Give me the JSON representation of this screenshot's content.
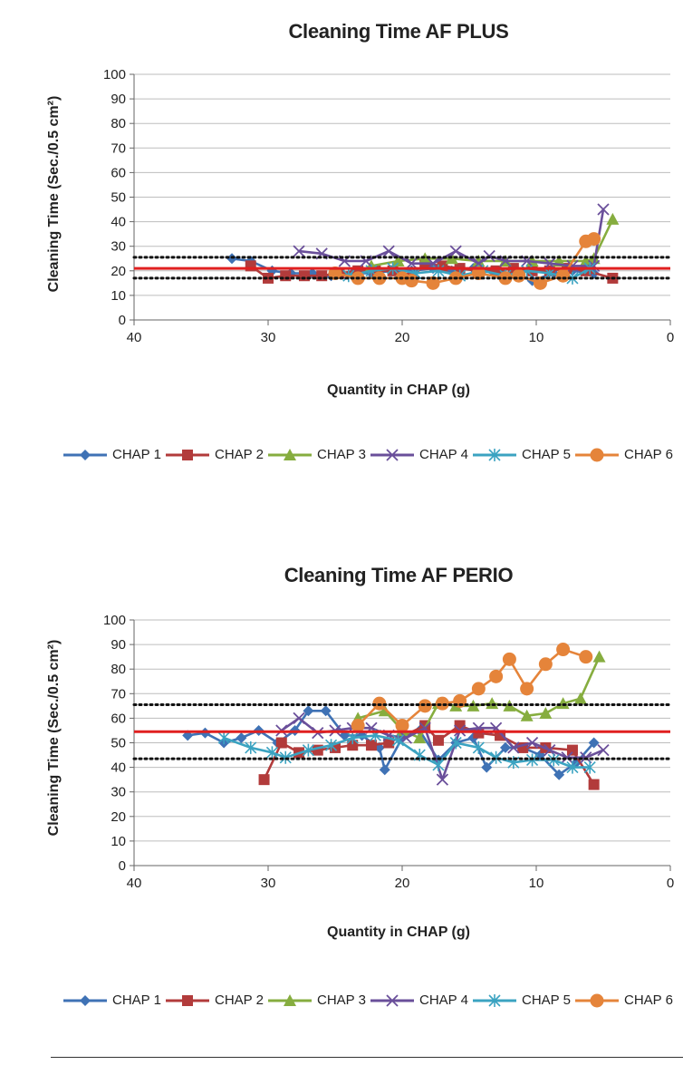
{
  "charts": [
    {
      "title": "Cleaning Time AF PLUS",
      "xlabel": "Quantity in CHAP (g)",
      "ylabel": "Cleaning Time (Sec./0.5 cm²)"
    },
    {
      "title": "Cleaning Time AF PERIO",
      "xlabel": "Quantity in CHAP (g)",
      "ylabel": "Cleaning Time (Sec./0.5 cm²)"
    }
  ],
  "legend": [
    "CHAP 1",
    "CHAP 2",
    "CHAP 3",
    "CHAP 4",
    "CHAP 5",
    "CHAP 6"
  ],
  "colors": {
    "CHAP 1": "#3f72b5",
    "CHAP 2": "#b23b3b",
    "CHAP 3": "#86ad3f",
    "CHAP 4": "#6a4f9a",
    "CHAP 5": "#3ba3c1",
    "CHAP 6": "#e5843a",
    "mean_line": "#e02020",
    "limit_lines": "#111111"
  },
  "markers": {
    "CHAP 1": "diamond",
    "CHAP 2": "square",
    "CHAP 3": "triangle",
    "CHAP 4": "x",
    "CHAP 5": "asterisk",
    "CHAP 6": "circle"
  },
  "chart_data": [
    {
      "type": "line",
      "title": "Cleaning Time AF PLUS",
      "xlabel": "Quantity in CHAP (g)",
      "ylabel": "Cleaning Time (Sec./0.5 cm²)",
      "xlim": [
        40,
        0
      ],
      "ylim": [
        0,
        100
      ],
      "xticks": [
        40,
        30,
        20,
        10,
        0
      ],
      "yticks": [
        0,
        10,
        20,
        30,
        40,
        50,
        60,
        70,
        80,
        90,
        100
      ],
      "reference_lines": {
        "mean": 21,
        "upper": 25.5,
        "lower": 17
      },
      "series": [
        {
          "name": "CHAP 1",
          "points": [
            [
              32.7,
              25
            ],
            [
              31.3,
              24
            ],
            [
              29.7,
              20
            ],
            [
              28.3,
              19
            ],
            [
              26.7,
              19
            ],
            [
              25.3,
              18
            ],
            [
              23.7,
              19
            ],
            [
              22.3,
              19
            ],
            [
              20.7,
              20
            ],
            [
              19.3,
              20
            ],
            [
              17.7,
              21
            ],
            [
              16.3,
              20
            ],
            [
              14.7,
              21
            ],
            [
              13.3,
              20
            ],
            [
              11.7,
              19
            ],
            [
              10.3,
              16
            ],
            [
              8.7,
              19
            ],
            [
              7.3,
              20
            ],
            [
              5.7,
              19
            ]
          ]
        },
        {
          "name": "CHAP 2",
          "points": [
            [
              31.3,
              22
            ],
            [
              30,
              17
            ],
            [
              28.7,
              18
            ],
            [
              27.3,
              18
            ],
            [
              26,
              18
            ],
            [
              24.7,
              19
            ],
            [
              23.3,
              20
            ],
            [
              22,
              20
            ],
            [
              20.7,
              20
            ],
            [
              19.3,
              17
            ],
            [
              18.3,
              23
            ],
            [
              17,
              22
            ],
            [
              15.7,
              21
            ],
            [
              14.3,
              20
            ],
            [
              13,
              20
            ],
            [
              11.7,
              21
            ],
            [
              10.3,
              20
            ],
            [
              9,
              20
            ],
            [
              7.7,
              21
            ],
            [
              6.3,
              20
            ],
            [
              4.3,
              17
            ]
          ]
        },
        {
          "name": "CHAP 3",
          "points": [
            [
              22.3,
              22
            ],
            [
              20.3,
              24
            ],
            [
              18.3,
              25
            ],
            [
              16.3,
              25
            ],
            [
              14.3,
              24
            ],
            [
              12.3,
              24
            ],
            [
              10.3,
              24
            ],
            [
              8.3,
              24
            ],
            [
              6.3,
              24
            ],
            [
              5.7,
              25
            ],
            [
              4.3,
              41
            ]
          ]
        },
        {
          "name": "CHAP 4",
          "points": [
            [
              27.7,
              28
            ],
            [
              26,
              27
            ],
            [
              24.3,
              24
            ],
            [
              22.7,
              24
            ],
            [
              21,
              28
            ],
            [
              19.3,
              23
            ],
            [
              17.7,
              23
            ],
            [
              16,
              28
            ],
            [
              14.3,
              23
            ],
            [
              13.5,
              26
            ],
            [
              12.3,
              24
            ],
            [
              10.7,
              24
            ],
            [
              9,
              23
            ],
            [
              7.3,
              22
            ],
            [
              5.7,
              22
            ],
            [
              5,
              45
            ]
          ]
        },
        {
          "name": "CHAP 5",
          "points": [
            [
              24,
              18
            ],
            [
              22.3,
              20
            ],
            [
              20.7,
              21
            ],
            [
              19,
              19
            ],
            [
              17.3,
              20
            ],
            [
              15.7,
              18
            ],
            [
              14,
              20
            ],
            [
              12.3,
              18
            ],
            [
              10.7,
              20
            ],
            [
              9,
              19
            ],
            [
              7.3,
              17
            ],
            [
              6,
              21
            ]
          ]
        },
        {
          "name": "CHAP 6",
          "points": [
            [
              25,
              19
            ],
            [
              23.3,
              17
            ],
            [
              21.7,
              17
            ],
            [
              20,
              17
            ],
            [
              19.3,
              16
            ],
            [
              17.7,
              15
            ],
            [
              16,
              17
            ],
            [
              14.3,
              19
            ],
            [
              12.3,
              17
            ],
            [
              11.3,
              18
            ],
            [
              9.7,
              15
            ],
            [
              8,
              18
            ],
            [
              6.3,
              32
            ],
            [
              5.7,
              33
            ]
          ]
        }
      ]
    },
    {
      "type": "line",
      "title": "Cleaning Time AF PERIO",
      "xlabel": "Quantity in CHAP (g)",
      "ylabel": "Cleaning Time (Sec./0.5 cm²)",
      "xlim": [
        40,
        0
      ],
      "ylim": [
        0,
        100
      ],
      "xticks": [
        40,
        30,
        20,
        10,
        0
      ],
      "yticks": [
        0,
        10,
        20,
        30,
        40,
        50,
        60,
        70,
        80,
        90,
        100
      ],
      "reference_lines": {
        "mean": 54.5,
        "upper": 65.5,
        "lower": 43.5
      },
      "series": [
        {
          "name": "CHAP 1",
          "points": [
            [
              36,
              53
            ],
            [
              34.7,
              54
            ],
            [
              33.3,
              50
            ],
            [
              32,
              52
            ],
            [
              30.7,
              55
            ],
            [
              29.3,
              50
            ],
            [
              28,
              55
            ],
            [
              27,
              63
            ],
            [
              25.7,
              63
            ],
            [
              24.3,
              53
            ],
            [
              23,
              53
            ],
            [
              21.7,
              48
            ],
            [
              21.3,
              39
            ],
            [
              20,
              52
            ],
            [
              18.7,
              55
            ],
            [
              17.3,
              43
            ],
            [
              16,
              50
            ],
            [
              14.7,
              52
            ],
            [
              13.7,
              40
            ],
            [
              12.3,
              48
            ],
            [
              11,
              48
            ],
            [
              9.7,
              45
            ],
            [
              8.3,
              37
            ],
            [
              7,
              42
            ],
            [
              5.7,
              50
            ]
          ]
        },
        {
          "name": "CHAP 2",
          "points": [
            [
              30.3,
              35
            ],
            [
              29,
              50
            ],
            [
              27.7,
              46
            ],
            [
              26.3,
              47
            ],
            [
              25,
              48
            ],
            [
              23.7,
              49
            ],
            [
              22.3,
              49
            ],
            [
              21,
              50
            ],
            [
              18.3,
              57
            ],
            [
              17.3,
              51
            ],
            [
              15.7,
              57
            ],
            [
              14.3,
              54
            ],
            [
              12.7,
              53
            ],
            [
              11,
              48
            ],
            [
              9.3,
              48
            ],
            [
              7.3,
              47
            ],
            [
              5.7,
              33
            ]
          ]
        },
        {
          "name": "CHAP 3",
          "points": [
            [
              23.3,
              60
            ],
            [
              21.3,
              63
            ],
            [
              20,
              55
            ],
            [
              18.7,
              52
            ],
            [
              17.3,
              66
            ],
            [
              16,
              65
            ],
            [
              14.7,
              65
            ],
            [
              13.3,
              66
            ],
            [
              12,
              65
            ],
            [
              10.7,
              61
            ],
            [
              9.3,
              62
            ],
            [
              8,
              66
            ],
            [
              6.7,
              68
            ],
            [
              5.3,
              85
            ]
          ]
        },
        {
          "name": "CHAP 4",
          "points": [
            [
              29,
              55
            ],
            [
              27.7,
              60
            ],
            [
              26.3,
              54
            ],
            [
              25,
              55
            ],
            [
              23.7,
              56
            ],
            [
              22.3,
              56
            ],
            [
              21,
              53
            ],
            [
              19.7,
              52
            ],
            [
              18.3,
              56
            ],
            [
              17,
              35
            ],
            [
              15.7,
              55
            ],
            [
              14.3,
              56
            ],
            [
              13,
              56
            ],
            [
              11.7,
              48
            ],
            [
              10.3,
              50
            ],
            [
              9,
              47
            ],
            [
              7.7,
              44
            ],
            [
              6.3,
              44
            ],
            [
              5,
              47
            ]
          ]
        },
        {
          "name": "CHAP 5",
          "points": [
            [
              33.3,
              52
            ],
            [
              31.3,
              48
            ],
            [
              29.7,
              46
            ],
            [
              28.7,
              44
            ],
            [
              27,
              47
            ],
            [
              25.3,
              49
            ],
            [
              23.7,
              52
            ],
            [
              22,
              53
            ],
            [
              20.3,
              51
            ],
            [
              18.7,
              45
            ],
            [
              17.3,
              41
            ],
            [
              16,
              50
            ],
            [
              14.3,
              48
            ],
            [
              13,
              44
            ],
            [
              11.7,
              42
            ],
            [
              10.3,
              43
            ],
            [
              8.7,
              43
            ],
            [
              7.3,
              40
            ],
            [
              6,
              40
            ]
          ]
        },
        {
          "name": "CHAP 6",
          "points": [
            [
              23.3,
              57
            ],
            [
              21.7,
              66
            ],
            [
              20,
              57
            ],
            [
              18.3,
              65
            ],
            [
              17,
              66
            ],
            [
              15.7,
              67
            ],
            [
              14.3,
              72
            ],
            [
              13,
              77
            ],
            [
              12,
              84
            ],
            [
              10.7,
              72
            ],
            [
              9.3,
              82
            ],
            [
              8,
              88
            ],
            [
              6.3,
              85
            ]
          ]
        }
      ]
    }
  ]
}
